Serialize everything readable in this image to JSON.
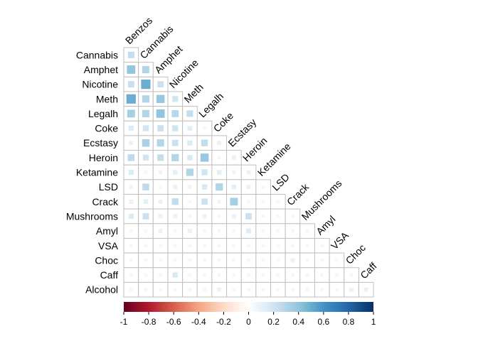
{
  "chart_data": {
    "type": "heatmap",
    "style": "lower-triangle correlation matrix drawn with squares whose size and color encode the coefficient",
    "row_labels": [
      "Cannabis",
      "Amphet",
      "Nicotine",
      "Meth",
      "Legalh",
      "Coke",
      "Ecstasy",
      "Heroin",
      "Ketamine",
      "LSD",
      "Crack",
      "Mushrooms",
      "Amyl",
      "VSA",
      "Choc",
      "Caff",
      "Alcohol"
    ],
    "col_labels": [
      "Benzos",
      "Cannabis",
      "Amphet",
      "Nicotine",
      "Meth",
      "Legalh",
      "Coke",
      "Ecstasy",
      "Heroin",
      "Ketamine",
      "LSD",
      "Crack",
      "Mushrooms",
      "Amyl",
      "VSA",
      "Choc",
      "Caff"
    ],
    "values": [
      [
        0.24
      ],
      [
        0.4,
        0.3
      ],
      [
        0.23,
        0.5,
        0.22
      ],
      [
        0.5,
        0.3,
        0.38,
        0.2
      ],
      [
        0.34,
        0.3,
        0.4,
        0.28,
        0.24
      ],
      [
        0.15,
        0.2,
        0.22,
        0.2,
        0.13,
        0.06
      ],
      [
        0.1,
        0.32,
        0.3,
        0.22,
        0.15,
        0.25,
        0.1
      ],
      [
        0.26,
        0.2,
        0.24,
        0.3,
        0.16,
        0.38,
        0.06,
        0.1
      ],
      [
        0.15,
        0.06,
        0.08,
        0.12,
        0.3,
        0.2,
        0.12,
        0.08,
        0.1
      ],
      [
        0.08,
        0.26,
        0.06,
        0.1,
        0.08,
        0.16,
        0.3,
        0.12,
        0.1,
        0.06
      ],
      [
        0.1,
        0.12,
        0.1,
        0.25,
        0.06,
        0.22,
        0.08,
        0.34,
        0.06,
        0.06,
        0.06
      ],
      [
        0.15,
        0.22,
        0.1,
        0.1,
        0.06,
        0.1,
        0.06,
        0.1,
        0.22,
        0.06,
        0.06,
        0.06
      ],
      [
        0.06,
        0.06,
        0.1,
        0.06,
        0.1,
        0.06,
        0.06,
        0.06,
        0.14,
        0.06,
        0.06,
        0.06,
        0.06
      ],
      [
        0.06,
        0.06,
        0.06,
        0.06,
        0.06,
        0.06,
        0.06,
        0.06,
        0.06,
        0.06,
        0.06,
        0.06,
        0.06,
        0.06
      ],
      [
        0.06,
        0.06,
        0.06,
        0.06,
        0.06,
        0.06,
        0.06,
        0.06,
        0.06,
        0.06,
        0.06,
        0.1,
        0.06,
        0.06,
        0.06
      ],
      [
        0.06,
        0.06,
        0.06,
        0.16,
        0.06,
        0.06,
        0.06,
        0.06,
        0.06,
        0.06,
        0.06,
        0.06,
        0.06,
        0.06,
        0.06,
        0.06
      ],
      [
        0.06,
        0.06,
        0.06,
        0.06,
        0.06,
        0.06,
        0.1,
        0.06,
        0.06,
        0.06,
        0.06,
        0.06,
        0.06,
        0.06,
        0.06,
        0.1,
        0.1
      ]
    ],
    "colorbar": {
      "range": [
        -1,
        1
      ],
      "ticks": [
        -1,
        -0.8,
        -0.6,
        -0.4,
        -0.2,
        0,
        0.2,
        0.4,
        0.6,
        0.8,
        1
      ],
      "tick_labels": [
        "-1",
        "-0.8",
        "-0.6",
        "-0.4",
        "-0.2",
        "0",
        "0.2",
        "0.4",
        "0.6",
        "0.8",
        "1"
      ],
      "colors": [
        "#67001f",
        "#b2182b",
        "#d6604d",
        "#f4a582",
        "#fddbc7",
        "#ffffff",
        "#d1e5f0",
        "#92c5de",
        "#4393c3",
        "#2166ac",
        "#053061"
      ],
      "placement": "bottom"
    },
    "grid_color": "#bfbfbf",
    "title": "",
    "xlabel": "",
    "ylabel": ""
  }
}
